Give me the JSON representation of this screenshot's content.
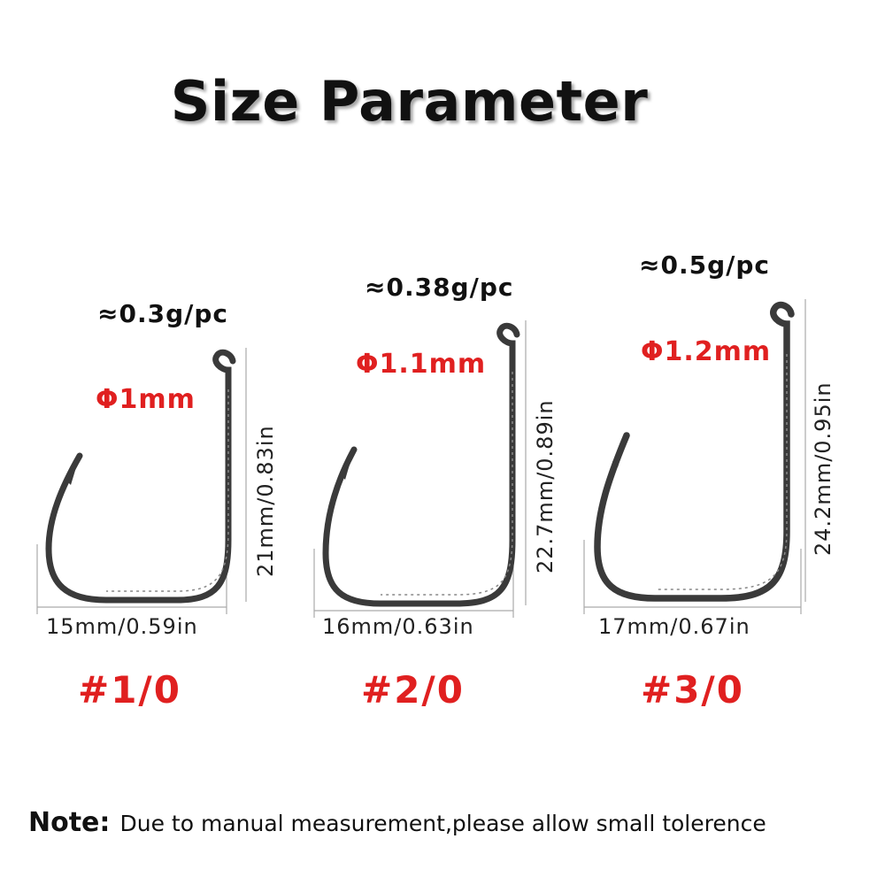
{
  "title": "Size Parameter",
  "colors": {
    "accent": "#e02020",
    "text": "#111111",
    "hook": "#3a3a3a"
  },
  "hooks": [
    {
      "size": "#1/0",
      "weight": "≈0.3g/pc",
      "diameter": "Φ1mm",
      "width": "15mm/0.59in",
      "height": "21mm/0.83in"
    },
    {
      "size": "#2/0",
      "weight": "≈0.38g/pc",
      "diameter": "Φ1.1mm",
      "width": "16mm/0.63in",
      "height": "22.7mm/0.89in"
    },
    {
      "size": "#3/0",
      "weight": "≈0.5g/pc",
      "diameter": "Φ1.2mm",
      "width": "17mm/0.67in",
      "height": "24.2mm/0.95in"
    }
  ],
  "note": {
    "label": "Note:",
    "text": "Due to manual measurement,please allow small tolerence"
  }
}
